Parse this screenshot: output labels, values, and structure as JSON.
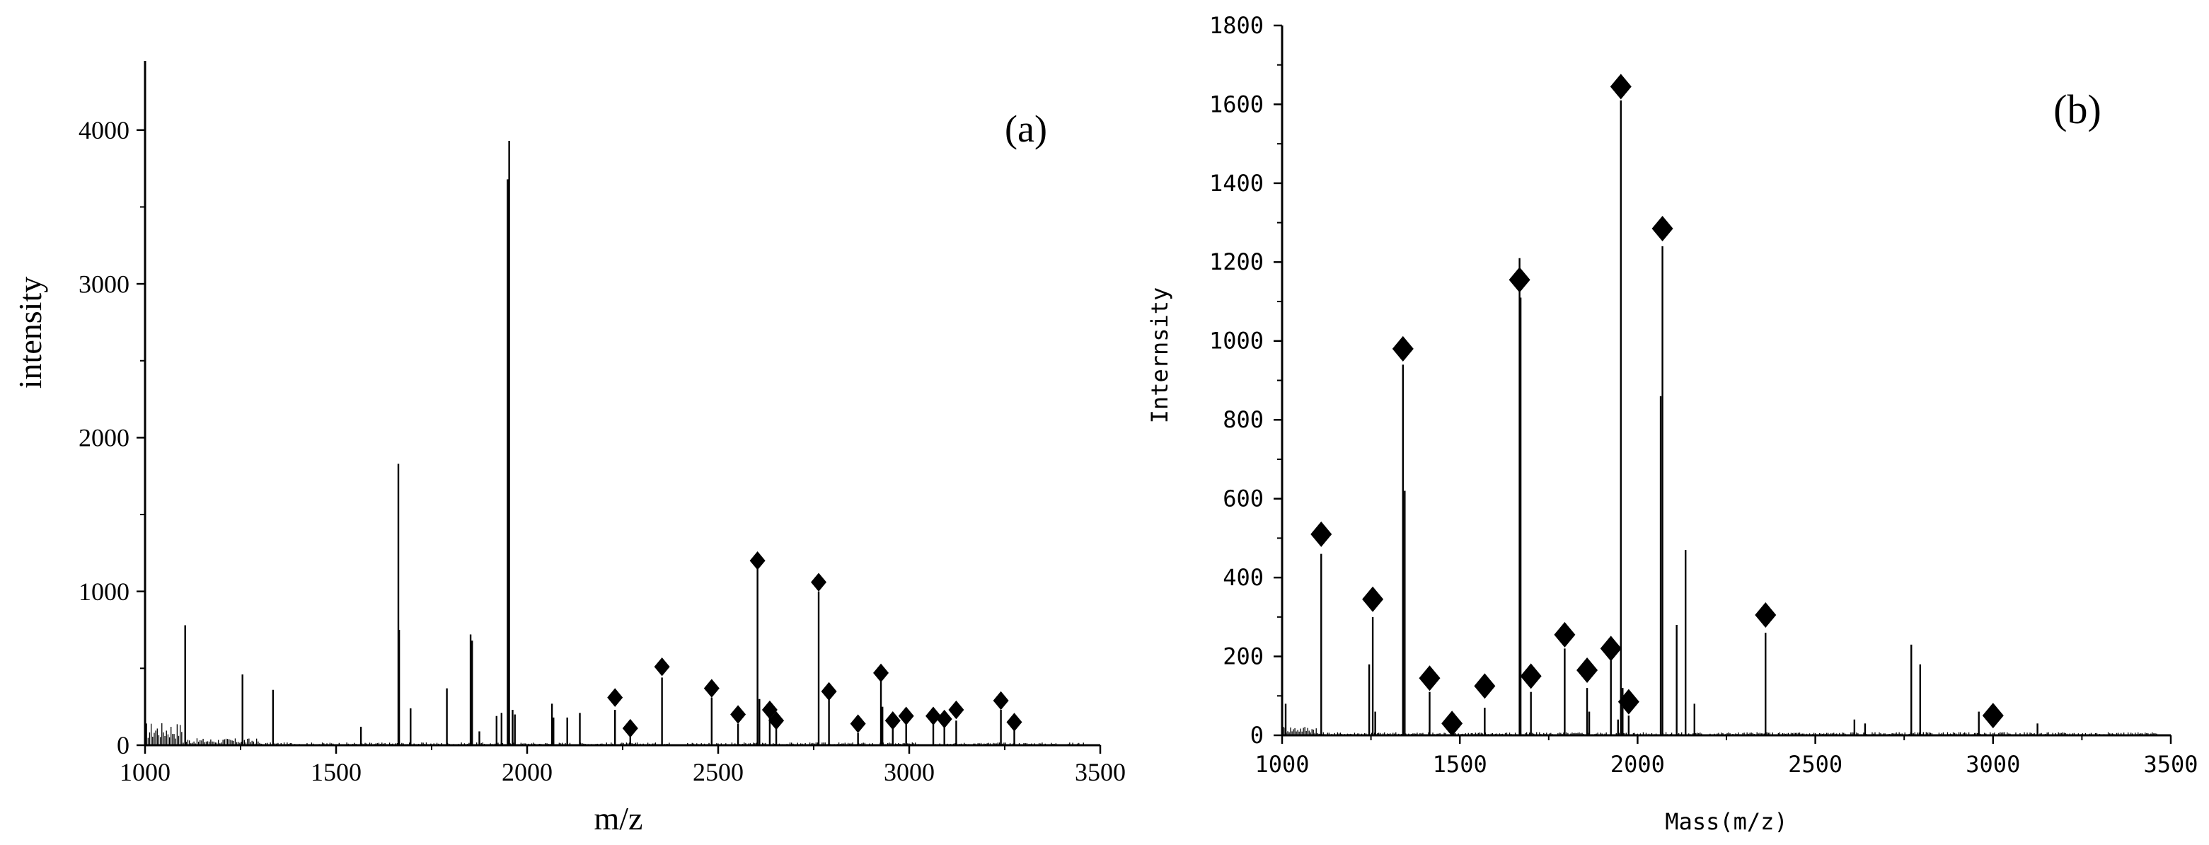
{
  "chart_data": [
    {
      "type": "bar",
      "panel_label": "(a)",
      "xlabel": "m/z",
      "ylabel": "intensity",
      "xlim": [
        1000,
        3500
      ],
      "ylim": [
        0,
        4450
      ],
      "x_ticks": [
        1000,
        1500,
        2000,
        2500,
        3000,
        3500
      ],
      "y_ticks": [
        0,
        1000,
        2000,
        3000,
        4000
      ],
      "grid": false,
      "peaks": [
        {
          "mz": 1105,
          "intensity": 780
        },
        {
          "mz": 1255,
          "intensity": 460
        },
        {
          "mz": 1335,
          "intensity": 360
        },
        {
          "mz": 1565,
          "intensity": 120
        },
        {
          "mz": 1663,
          "intensity": 1830
        },
        {
          "mz": 1665,
          "intensity": 750
        },
        {
          "mz": 1695,
          "intensity": 240
        },
        {
          "mz": 1790,
          "intensity": 370
        },
        {
          "mz": 1852,
          "intensity": 720
        },
        {
          "mz": 1856,
          "intensity": 680
        },
        {
          "mz": 1875,
          "intensity": 90
        },
        {
          "mz": 1920,
          "intensity": 190
        },
        {
          "mz": 1933,
          "intensity": 210
        },
        {
          "mz": 1953,
          "intensity": 3930
        },
        {
          "mz": 1949,
          "intensity": 3680
        },
        {
          "mz": 1962,
          "intensity": 230
        },
        {
          "mz": 1968,
          "intensity": 200
        },
        {
          "mz": 2065,
          "intensity": 270
        },
        {
          "mz": 2069,
          "intensity": 180
        },
        {
          "mz": 2105,
          "intensity": 180
        },
        {
          "mz": 2138,
          "intensity": 210
        },
        {
          "mz": 2230,
          "intensity": 230
        },
        {
          "mz": 2270,
          "intensity": 80
        },
        {
          "mz": 2353,
          "intensity": 440
        },
        {
          "mz": 2483,
          "intensity": 310
        },
        {
          "mz": 2552,
          "intensity": 140
        },
        {
          "mz": 2603,
          "intensity": 1150
        },
        {
          "mz": 2608,
          "intensity": 300
        },
        {
          "mz": 2635,
          "intensity": 180
        },
        {
          "mz": 2652,
          "intensity": 120
        },
        {
          "mz": 2763,
          "intensity": 1000
        },
        {
          "mz": 2790,
          "intensity": 300
        },
        {
          "mz": 2866,
          "intensity": 80
        },
        {
          "mz": 2926,
          "intensity": 420
        },
        {
          "mz": 2930,
          "intensity": 250
        },
        {
          "mz": 2957,
          "intensity": 120
        },
        {
          "mz": 2992,
          "intensity": 150
        },
        {
          "mz": 3063,
          "intensity": 150
        },
        {
          "mz": 3092,
          "intensity": 130
        },
        {
          "mz": 3123,
          "intensity": 160
        },
        {
          "mz": 3240,
          "intensity": 230
        },
        {
          "mz": 3275,
          "intensity": 100
        }
      ],
      "marked_peaks": [
        {
          "mz": 2230,
          "intensity": 310
        },
        {
          "mz": 2270,
          "intensity": 110
        },
        {
          "mz": 2353,
          "intensity": 510
        },
        {
          "mz": 2483,
          "intensity": 370
        },
        {
          "mz": 2552,
          "intensity": 200
        },
        {
          "mz": 2603,
          "intensity": 1200
        },
        {
          "mz": 2635,
          "intensity": 230
        },
        {
          "mz": 2652,
          "intensity": 160
        },
        {
          "mz": 2763,
          "intensity": 1060
        },
        {
          "mz": 2790,
          "intensity": 350
        },
        {
          "mz": 2866,
          "intensity": 140
        },
        {
          "mz": 2926,
          "intensity": 470
        },
        {
          "mz": 2957,
          "intensity": 160
        },
        {
          "mz": 2992,
          "intensity": 190
        },
        {
          "mz": 3063,
          "intensity": 190
        },
        {
          "mz": 3092,
          "intensity": 170
        },
        {
          "mz": 3123,
          "intensity": 230
        },
        {
          "mz": 3240,
          "intensity": 290
        },
        {
          "mz": 3275,
          "intensity": 150
        }
      ]
    },
    {
      "type": "bar",
      "panel_label": "(b)",
      "xlabel": "Mass(m/z)",
      "ylabel": "Internsity",
      "xlim": [
        1000,
        3500
      ],
      "ylim": [
        0,
        1800
      ],
      "x_ticks": [
        1000,
        1500,
        2000,
        2500,
        3000,
        3500
      ],
      "y_ticks": [
        0,
        200,
        400,
        600,
        800,
        1000,
        1200,
        1400,
        1600,
        1800
      ],
      "grid": false,
      "peaks": [
        {
          "mz": 1010,
          "intensity": 80
        },
        {
          "mz": 1110,
          "intensity": 460
        },
        {
          "mz": 1245,
          "intensity": 180
        },
        {
          "mz": 1255,
          "intensity": 300
        },
        {
          "mz": 1262,
          "intensity": 60
        },
        {
          "mz": 1340,
          "intensity": 940
        },
        {
          "mz": 1345,
          "intensity": 620
        },
        {
          "mz": 1415,
          "intensity": 110
        },
        {
          "mz": 1478,
          "intensity": 30
        },
        {
          "mz": 1570,
          "intensity": 70
        },
        {
          "mz": 1668,
          "intensity": 1210
        },
        {
          "mz": 1671,
          "intensity": 1110
        },
        {
          "mz": 1700,
          "intensity": 110
        },
        {
          "mz": 1795,
          "intensity": 220
        },
        {
          "mz": 1858,
          "intensity": 120
        },
        {
          "mz": 1864,
          "intensity": 60
        },
        {
          "mz": 1925,
          "intensity": 190
        },
        {
          "mz": 1945,
          "intensity": 40
        },
        {
          "mz": 1953,
          "intensity": 1610
        },
        {
          "mz": 1958,
          "intensity": 120
        },
        {
          "mz": 1975,
          "intensity": 50
        },
        {
          "mz": 2065,
          "intensity": 860
        },
        {
          "mz": 2070,
          "intensity": 1240
        },
        {
          "mz": 2110,
          "intensity": 280
        },
        {
          "mz": 2135,
          "intensity": 470
        },
        {
          "mz": 2160,
          "intensity": 80
        },
        {
          "mz": 2360,
          "intensity": 260
        },
        {
          "mz": 2610,
          "intensity": 40
        },
        {
          "mz": 2640,
          "intensity": 30
        },
        {
          "mz": 2770,
          "intensity": 230
        },
        {
          "mz": 2795,
          "intensity": 180
        },
        {
          "mz": 2960,
          "intensity": 60
        },
        {
          "mz": 3125,
          "intensity": 30
        }
      ],
      "marked_peaks": [
        {
          "mz": 1110,
          "intensity": 510
        },
        {
          "mz": 1255,
          "intensity": 345
        },
        {
          "mz": 1340,
          "intensity": 980
        },
        {
          "mz": 1415,
          "intensity": 145
        },
        {
          "mz": 1478,
          "intensity": 30
        },
        {
          "mz": 1570,
          "intensity": 125
        },
        {
          "mz": 1668,
          "intensity": 1155
        },
        {
          "mz": 1700,
          "intensity": 150
        },
        {
          "mz": 1795,
          "intensity": 255
        },
        {
          "mz": 1858,
          "intensity": 165
        },
        {
          "mz": 1925,
          "intensity": 220
        },
        {
          "mz": 1975,
          "intensity": 85
        },
        {
          "mz": 1953,
          "intensity": 1645
        },
        {
          "mz": 2070,
          "intensity": 1285
        },
        {
          "mz": 2360,
          "intensity": 305
        },
        {
          "mz": 3000,
          "intensity": 50
        }
      ]
    }
  ]
}
